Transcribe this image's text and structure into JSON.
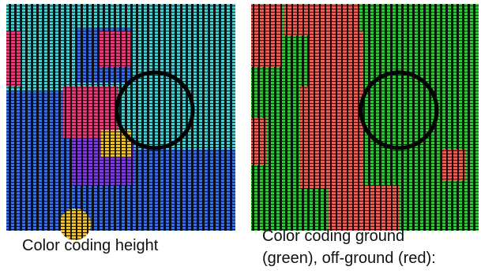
{
  "panels": [
    {
      "caption_lines": [
        "Color coding height"
      ]
    },
    {
      "caption_lines": [
        "Color coding ground",
        "(green), off-ground (red):"
      ]
    }
  ]
}
